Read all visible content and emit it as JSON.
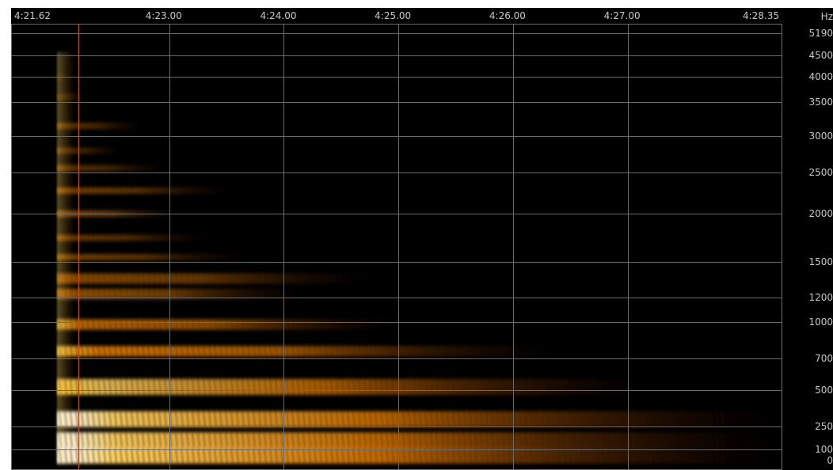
{
  "chart_data": {
    "type": "heatmap",
    "title": "",
    "xlabel": "",
    "ylabel": "Hz",
    "time_ticks": [
      "4:21.62",
      "4:23.00",
      "4:24.00",
      "4:25.00",
      "4:26.00",
      "4:27.00",
      "4:28.35"
    ],
    "time_start_s": 261.62,
    "time_end_s": 268.35,
    "freq_unit": "Hz",
    "freq_ticks": [
      5190,
      4500,
      4000,
      3500,
      3000,
      2500,
      2000,
      1500,
      1200,
      1000,
      700,
      500,
      250,
      100,
      0
    ],
    "freq_max": 5190,
    "cursor_time": "4:22.21",
    "grid": true,
    "colors": {
      "background": "#000000",
      "grid": "#6b6b6b",
      "cursor": "#ff2a00",
      "low": "#5a1a00",
      "mid": "#ff8a00",
      "high": "#ffffff"
    },
    "bands": [
      {
        "freq": 70,
        "intensity": 1.0,
        "decay_to": "4:28.30"
      },
      {
        "freq": 160,
        "intensity": 0.95,
        "decay_to": "4:28.30"
      },
      {
        "freq": 300,
        "intensity": 0.95,
        "decay_to": "4:28.30"
      },
      {
        "freq": 520,
        "intensity": 0.85,
        "decay_to": "4:27.20"
      },
      {
        "freq": 760,
        "intensity": 0.8,
        "decay_to": "4:26.40"
      },
      {
        "freq": 980,
        "intensity": 0.7,
        "decay_to": "4:25.00"
      },
      {
        "freq": 1230,
        "intensity": 0.55,
        "decay_to": "4:24.20"
      },
      {
        "freq": 1360,
        "intensity": 0.5,
        "decay_to": "4:24.80"
      },
      {
        "freq": 1550,
        "intensity": 0.45,
        "decay_to": "4:23.70"
      },
      {
        "freq": 1750,
        "intensity": 0.4,
        "decay_to": "4:23.40"
      },
      {
        "freq": 2000,
        "intensity": 0.5,
        "decay_to": "4:23.10"
      },
      {
        "freq": 2280,
        "intensity": 0.45,
        "decay_to": "4:23.60"
      },
      {
        "freq": 2560,
        "intensity": 0.35,
        "decay_to": "4:23.00"
      },
      {
        "freq": 2800,
        "intensity": 0.3,
        "decay_to": "4:22.60"
      },
      {
        "freq": 3150,
        "intensity": 0.35,
        "decay_to": "4:22.80"
      },
      {
        "freq": 3600,
        "intensity": 0.2,
        "decay_to": "4:22.30"
      },
      {
        "freq": 4000,
        "intensity": 0.15,
        "decay_to": "4:22.10"
      },
      {
        "freq": 4500,
        "intensity": 0.12,
        "decay_to": "4:22.00"
      }
    ]
  }
}
